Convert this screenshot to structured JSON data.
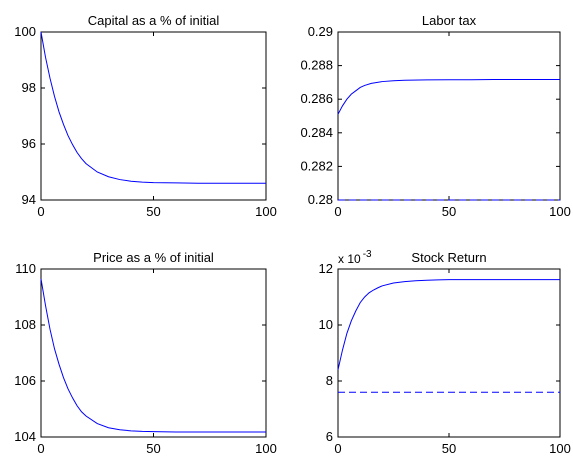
{
  "chart_data": [
    {
      "type": "line",
      "title": "Capital as a % of initial",
      "xlim": [
        0,
        100
      ],
      "ylim": [
        94,
        100
      ],
      "xticks": [
        "0",
        "50",
        "100"
      ],
      "yticks": [
        "94",
        "96",
        "98",
        "100"
      ],
      "line_color": "#0000ff",
      "series": [
        {
          "style": "solid",
          "x": [
            0,
            2,
            4,
            6,
            8,
            10,
            12,
            14,
            16,
            18,
            20,
            25,
            30,
            35,
            40,
            45,
            50,
            60,
            70,
            80,
            90,
            100
          ],
          "y": [
            100,
            99.1,
            98.35,
            97.7,
            97.15,
            96.7,
            96.3,
            95.98,
            95.7,
            95.48,
            95.3,
            95.0,
            94.83,
            94.73,
            94.67,
            94.64,
            94.62,
            94.61,
            94.6,
            94.6,
            94.6,
            94.6
          ]
        }
      ]
    },
    {
      "type": "line",
      "title": "Labor tax",
      "xlim": [
        0,
        100
      ],
      "ylim": [
        0.28,
        0.29
      ],
      "xticks": [
        "0",
        "50",
        "100"
      ],
      "yticks": [
        "0.28",
        "0.282",
        "0.284",
        "0.286",
        "0.288",
        "0.29"
      ],
      "line_color": "#0000ff",
      "series": [
        {
          "style": "solid",
          "x": [
            0,
            2,
            4,
            6,
            8,
            10,
            12,
            15,
            20,
            25,
            30,
            40,
            50,
            60,
            70,
            80,
            90,
            100
          ],
          "y": [
            0.2851,
            0.2856,
            0.286,
            0.2863,
            0.2865,
            0.2867,
            0.28682,
            0.28694,
            0.28705,
            0.2871,
            0.28713,
            0.28715,
            0.28716,
            0.28716,
            0.28717,
            0.28717,
            0.28717,
            0.28717
          ]
        },
        {
          "style": "dashed",
          "x": [
            0,
            100
          ],
          "y": [
            0.28,
            0.28
          ]
        }
      ]
    },
    {
      "type": "line",
      "title": "Price as a % of initial",
      "xlim": [
        0,
        100
      ],
      "ylim": [
        104,
        110
      ],
      "xticks": [
        "0",
        "50",
        "100"
      ],
      "yticks": [
        "104",
        "106",
        "108",
        "110"
      ],
      "line_color": "#0000ff",
      "series": [
        {
          "style": "solid",
          "x": [
            0,
            2,
            4,
            6,
            8,
            10,
            12,
            14,
            16,
            18,
            20,
            25,
            30,
            35,
            40,
            45,
            50,
            60,
            70,
            80,
            90,
            100
          ],
          "y": [
            109.65,
            108.7,
            107.85,
            107.15,
            106.6,
            106.12,
            105.72,
            105.4,
            105.12,
            104.9,
            104.75,
            104.48,
            104.33,
            104.26,
            104.22,
            104.2,
            104.19,
            104.18,
            104.18,
            104.18,
            104.18,
            104.18
          ]
        }
      ]
    },
    {
      "type": "line",
      "title": "Stock Return",
      "multiplier": {
        "base": "x 10",
        "exponent": "-3"
      },
      "xlim": [
        0,
        100
      ],
      "ylim": [
        6,
        12
      ],
      "xticks": [
        "0",
        "50",
        "100"
      ],
      "yticks": [
        "6",
        "8",
        "10",
        "12"
      ],
      "line_color": "#0000ff",
      "series": [
        {
          "style": "solid",
          "x": [
            0,
            2,
            4,
            6,
            8,
            10,
            12,
            14,
            16,
            18,
            20,
            25,
            30,
            35,
            40,
            45,
            50,
            60,
            70,
            80,
            90,
            100
          ],
          "y": [
            8.4,
            9.1,
            9.7,
            10.15,
            10.5,
            10.8,
            11.0,
            11.15,
            11.25,
            11.33,
            11.4,
            11.5,
            11.55,
            11.58,
            11.6,
            11.61,
            11.62,
            11.62,
            11.62,
            11.62,
            11.62,
            11.62
          ]
        },
        {
          "style": "dashed",
          "x": [
            0,
            100
          ],
          "y": [
            7.6,
            7.6
          ]
        }
      ]
    }
  ]
}
